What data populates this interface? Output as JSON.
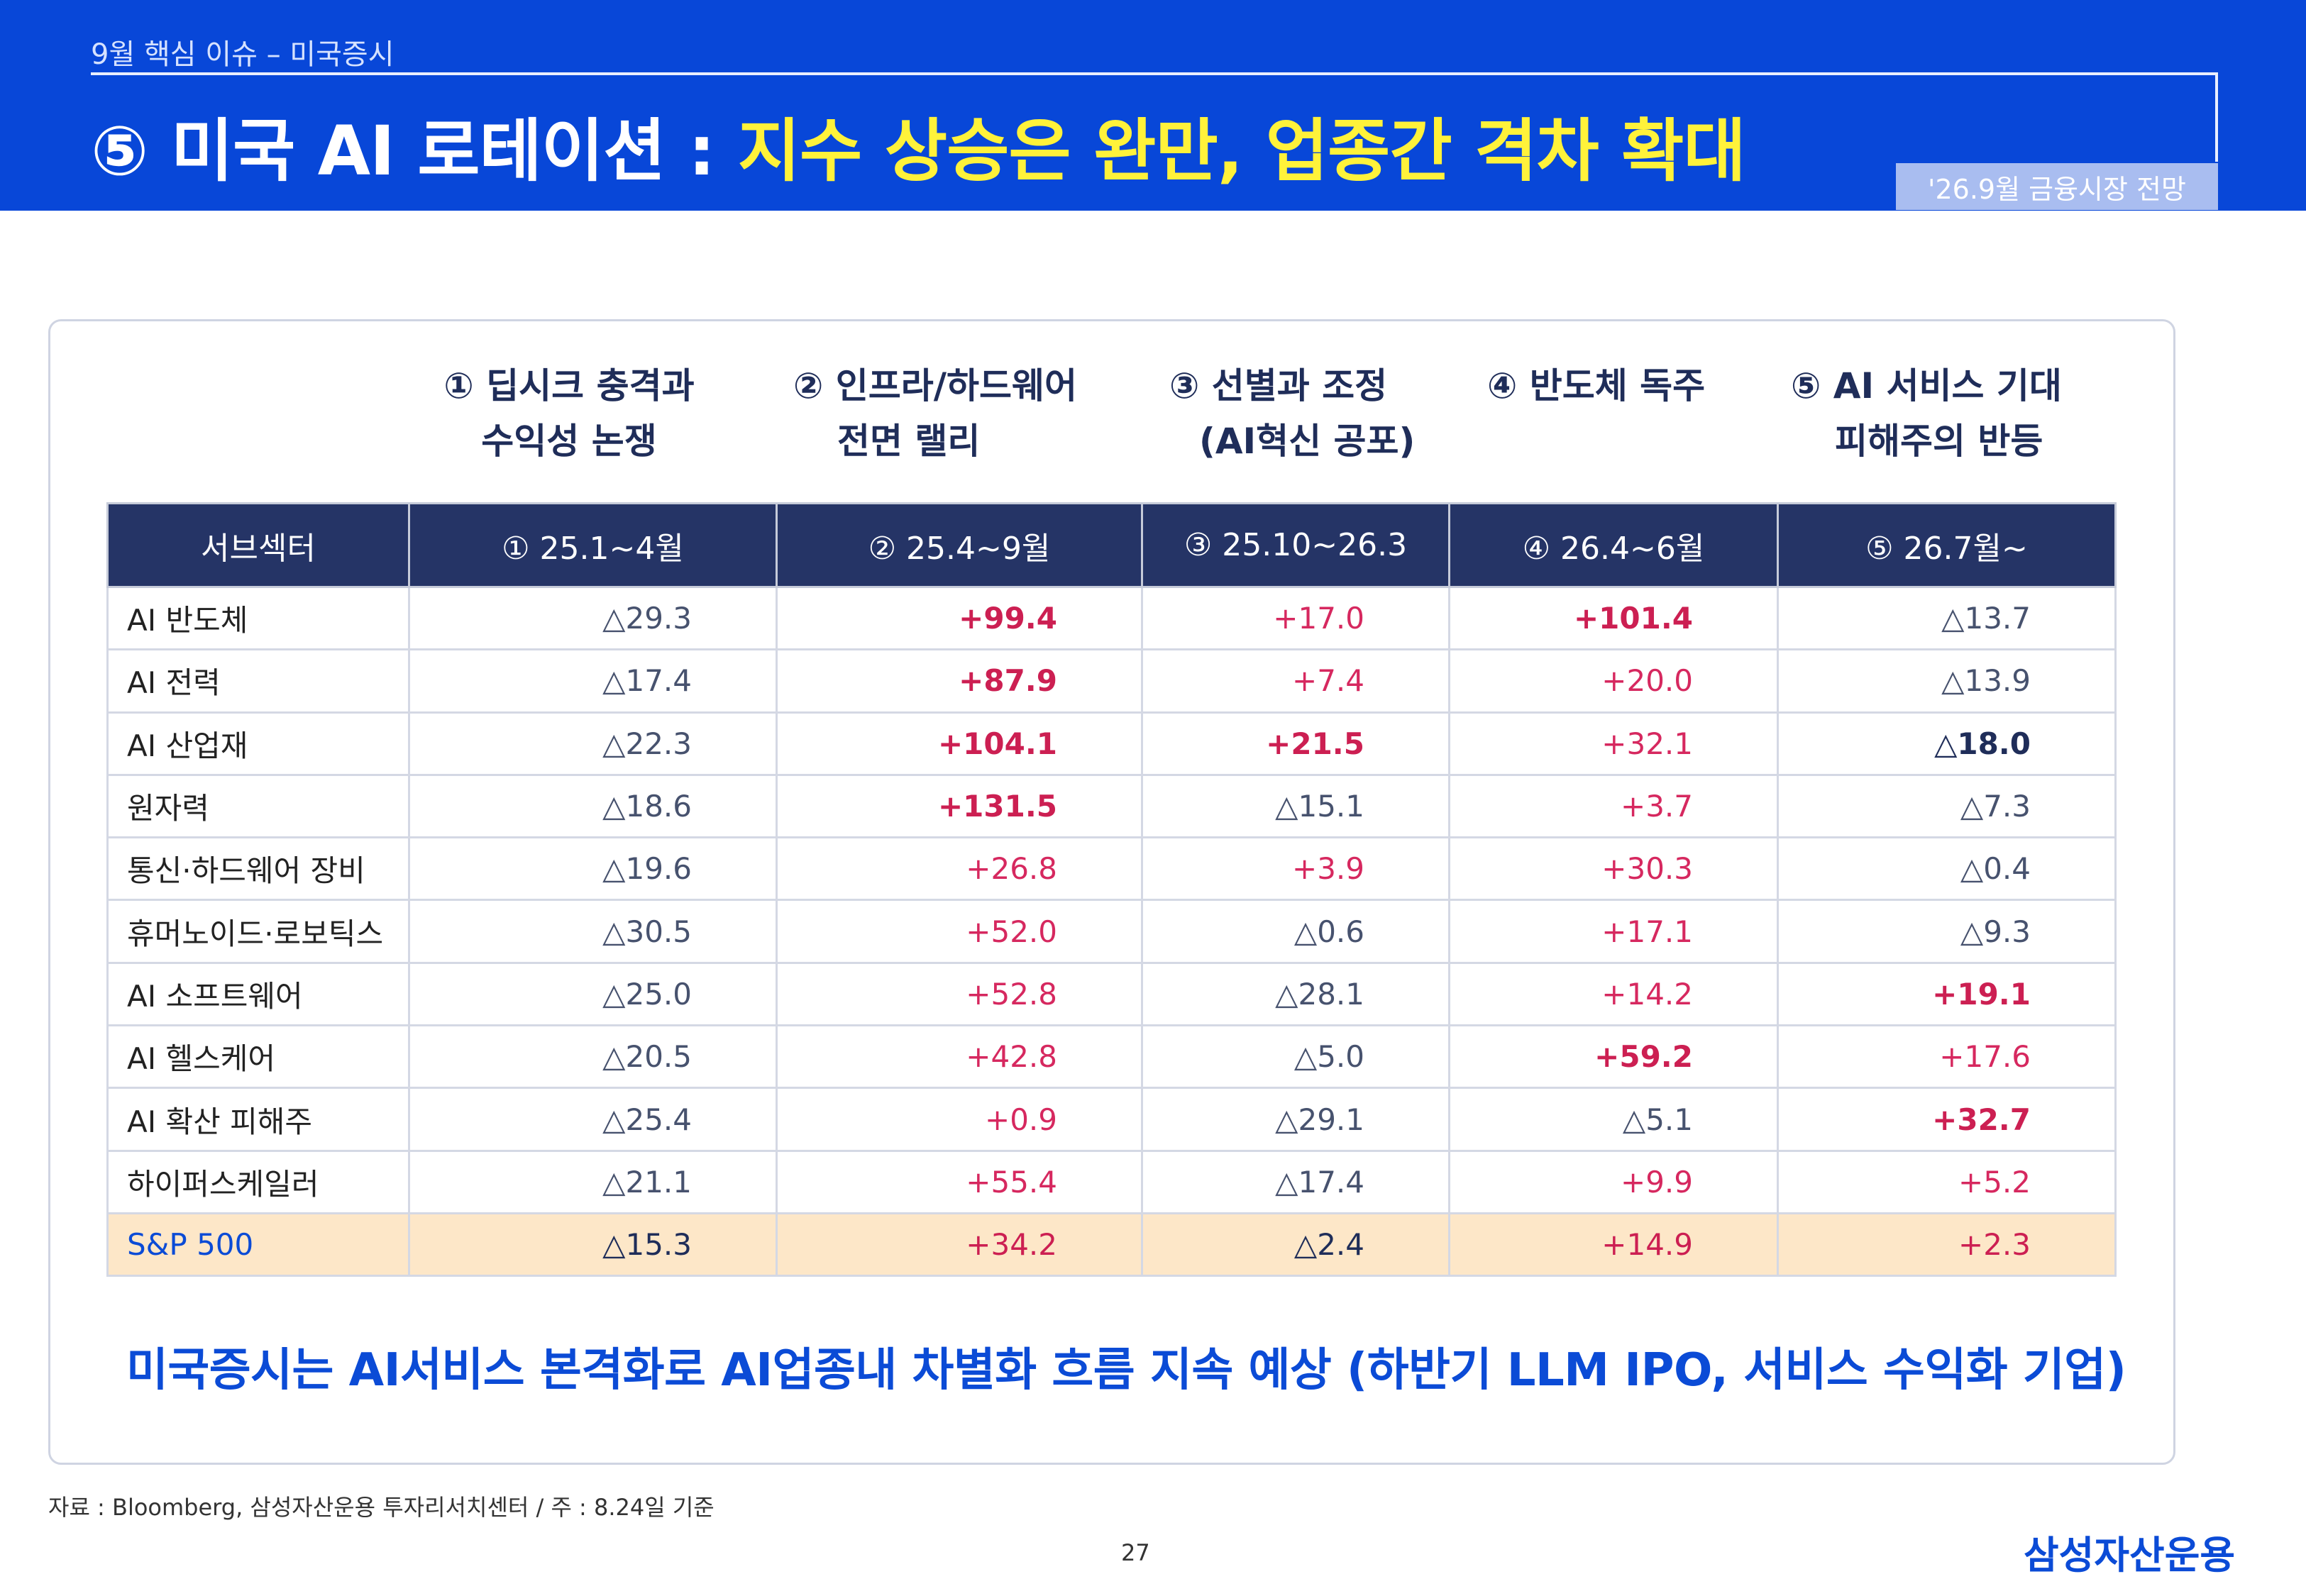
{
  "header": {
    "breadcrumb": "9월 핵심 이슈 – 미국증시",
    "title_prefix": "⑤ 미국 AI 로테이션 : ",
    "title_highlight": "지수 상승은 완만, 업종간 격차 확대",
    "badge": "'26.9월 금융시장 전망"
  },
  "phases": [
    {
      "line1": "① 딥시크 충격과",
      "line2": "수익성 논쟁"
    },
    {
      "line1": "② 인프라/하드웨어",
      "line2": "전면 랠리"
    },
    {
      "line1": "③ 선별과 조정",
      "line2": "(AI혁신 공포)"
    },
    {
      "line1": "④ 반도체 독주",
      "line2": ""
    },
    {
      "line1": "⑤ AI 서비스 기대",
      "line2": "피해주의 반등"
    }
  ],
  "table": {
    "headers": [
      "서브섹터",
      "① 25.1~4월",
      "② 25.4~9월",
      "③ 25.10~26.3",
      "④ 26.4~6월",
      "⑤ 26.7월~"
    ],
    "rows": [
      {
        "name": "AI 반도체",
        "values": [
          "△29.3",
          "+99.4",
          "+17.0",
          "+101.4",
          "△13.7"
        ]
      },
      {
        "name": "AI 전력",
        "values": [
          "△17.4",
          "+87.9",
          "+7.4",
          "+20.0",
          "△13.9"
        ]
      },
      {
        "name": "AI 산업재",
        "values": [
          "△22.3",
          "+104.1",
          "+21.5",
          "+32.1",
          "△18.0"
        ]
      },
      {
        "name": "원자력",
        "values": [
          "△18.6",
          "+131.5",
          "△15.1",
          "+3.7",
          "△7.3"
        ]
      },
      {
        "name": "통신·하드웨어 장비",
        "values": [
          "△19.6",
          "+26.8",
          "+3.9",
          "+30.3",
          "△0.4"
        ]
      },
      {
        "name": "휴머노이드·로보틱스",
        "values": [
          "△30.5",
          "+52.0",
          "△0.6",
          "+17.1",
          "△9.3"
        ]
      },
      {
        "name": "AI 소프트웨어",
        "values": [
          "△25.0",
          "+52.8",
          "△28.1",
          "+14.2",
          "+19.1"
        ]
      },
      {
        "name": "AI 헬스케어",
        "values": [
          "△20.5",
          "+42.8",
          "△5.0",
          "+59.2",
          "+17.6"
        ]
      },
      {
        "name": "AI 확산 피해주",
        "values": [
          "△25.4",
          "+0.9",
          "△29.1",
          "△5.1",
          "+32.7"
        ]
      },
      {
        "name": "하이퍼스케일러",
        "values": [
          "△21.1",
          "+55.4",
          "△17.4",
          "+9.9",
          "+5.2"
        ]
      },
      {
        "name": "S&P 500",
        "values": [
          "△15.3",
          "+34.2",
          "△2.4",
          "+14.9",
          "+2.3"
        ]
      }
    ]
  },
  "summary": "미국증시는 AI서비스 본격화로 AI업종내 차별화 흐름 지속 예상 (하반기 LLM IPO, 서비스 수익화 기업)",
  "footer": {
    "source": "자료 : Bloomberg, 삼성자산운용 투자리서치센터 / 주 : 8.24일 기준",
    "page": "27",
    "logo": "삼성자산운용"
  },
  "colors": {
    "brand_blue": "#0847d8",
    "title_highlight": "#fff23a",
    "table_header": "#253466",
    "positive": "#d6285f",
    "sp500_row": "#fde7c8"
  }
}
